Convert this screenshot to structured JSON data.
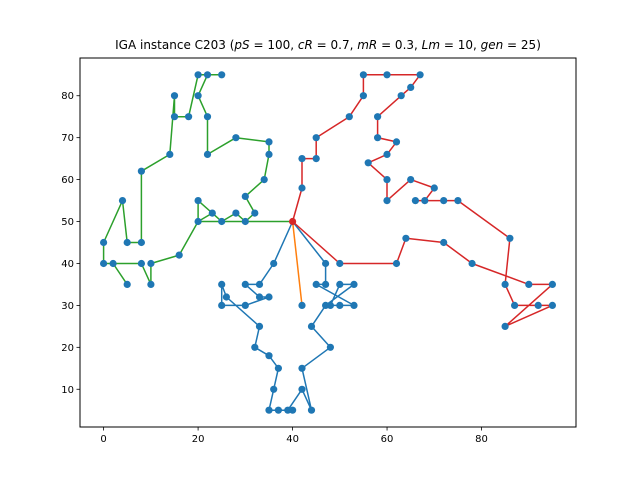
{
  "chart_data": {
    "type": "scatter",
    "title": "IGA instance C203 (pS = 100, cR = 0.7, mR = 0.3, Lm = 10, gen = 25)",
    "title_parts": {
      "prefix": "IGA instance C203 (",
      "eq": [
        [
          "pS",
          "100"
        ],
        [
          "cR",
          "0.7"
        ],
        [
          "mR",
          "0.3"
        ],
        [
          "Lm",
          "10"
        ],
        [
          "gen",
          "25"
        ]
      ],
      "suffix": ")"
    },
    "xlabel": "",
    "ylabel": "",
    "xlim": [
      -5,
      100
    ],
    "ylim": [
      1,
      89
    ],
    "xticks": [
      0,
      20,
      40,
      60,
      80
    ],
    "yticks": [
      10,
      20,
      30,
      40,
      50,
      60,
      70,
      80
    ],
    "grid": false,
    "depot": [
      40,
      50
    ],
    "colors": {
      "points": "#1f77b4",
      "depot": "#d62728",
      "blue_route": "#1f77b4",
      "orange_route": "#ff7f0e",
      "green_route": "#2ca02c",
      "red_route": "#d62728"
    },
    "routes": [
      {
        "color": "#2ca02c",
        "points": [
          [
            40,
            50
          ],
          [
            30,
            50
          ],
          [
            28,
            52
          ],
          [
            25,
            50
          ],
          [
            23,
            52
          ],
          [
            20,
            50
          ],
          [
            20,
            55
          ],
          [
            25,
            50
          ],
          [
            30,
            50
          ],
          [
            32,
            52
          ],
          [
            30,
            56
          ],
          [
            34,
            60
          ],
          [
            35,
            66
          ],
          [
            35,
            69
          ],
          [
            28,
            70
          ],
          [
            22,
            66
          ],
          [
            22,
            75
          ],
          [
            20,
            80
          ],
          [
            22,
            85
          ],
          [
            25,
            85
          ],
          [
            20,
            85
          ],
          [
            18,
            75
          ],
          [
            15,
            75
          ],
          [
            15,
            80
          ],
          [
            14,
            66
          ],
          [
            8,
            62
          ],
          [
            8,
            45
          ],
          [
            5,
            45
          ],
          [
            4,
            55
          ],
          [
            0,
            45
          ],
          [
            0,
            40
          ],
          [
            2,
            40
          ],
          [
            5,
            35
          ],
          [
            2,
            40
          ],
          [
            8,
            40
          ],
          [
            10,
            35
          ],
          [
            10,
            40
          ],
          [
            16,
            42
          ],
          [
            20,
            50
          ],
          [
            40,
            50
          ]
        ]
      },
      {
        "color": "#1f77b4",
        "points": [
          [
            40,
            50
          ],
          [
            36,
            40
          ],
          [
            33,
            35
          ],
          [
            30,
            35
          ],
          [
            33,
            32
          ],
          [
            35,
            32
          ],
          [
            30,
            30
          ],
          [
            25,
            30
          ],
          [
            25,
            35
          ],
          [
            26,
            32
          ],
          [
            33,
            25
          ],
          [
            32,
            20
          ],
          [
            35,
            18
          ],
          [
            37,
            15
          ],
          [
            36,
            10
          ],
          [
            35,
            5
          ],
          [
            37,
            5
          ],
          [
            40,
            5
          ],
          [
            39,
            5
          ],
          [
            42,
            10
          ],
          [
            44,
            5
          ],
          [
            42,
            15
          ],
          [
            48,
            20
          ],
          [
            44,
            25
          ],
          [
            47,
            30
          ],
          [
            53,
            35
          ],
          [
            50,
            35
          ],
          [
            48,
            30
          ],
          [
            50,
            30
          ],
          [
            53,
            30
          ],
          [
            45,
            35
          ],
          [
            47,
            35
          ],
          [
            47,
            40
          ],
          [
            40,
            50
          ]
        ]
      },
      {
        "color": "#ff7f0e",
        "points": [
          [
            40,
            50
          ],
          [
            42,
            30
          ]
        ]
      },
      {
        "color": "#d62728",
        "points": [
          [
            40,
            50
          ],
          [
            42,
            58
          ],
          [
            42,
            65
          ],
          [
            45,
            65
          ],
          [
            45,
            70
          ],
          [
            52,
            75
          ],
          [
            55,
            80
          ],
          [
            55,
            85
          ],
          [
            60,
            85
          ],
          [
            67,
            85
          ],
          [
            65,
            82
          ],
          [
            63,
            80
          ],
          [
            58,
            75
          ],
          [
            58,
            70
          ],
          [
            62,
            69
          ],
          [
            60,
            66
          ],
          [
            56,
            64
          ],
          [
            60,
            60
          ],
          [
            60,
            55
          ],
          [
            65,
            60
          ],
          [
            70,
            58
          ],
          [
            68,
            55
          ],
          [
            66,
            55
          ],
          [
            72,
            55
          ],
          [
            75,
            55
          ],
          [
            86,
            46
          ],
          [
            85,
            35
          ],
          [
            87,
            30
          ],
          [
            92,
            30
          ],
          [
            95,
            30
          ],
          [
            85,
            25
          ],
          [
            95,
            35
          ],
          [
            90,
            35
          ],
          [
            78,
            40
          ],
          [
            72,
            45
          ],
          [
            64,
            46
          ],
          [
            62,
            40
          ],
          [
            50,
            40
          ],
          [
            40,
            50
          ]
        ]
      }
    ]
  }
}
